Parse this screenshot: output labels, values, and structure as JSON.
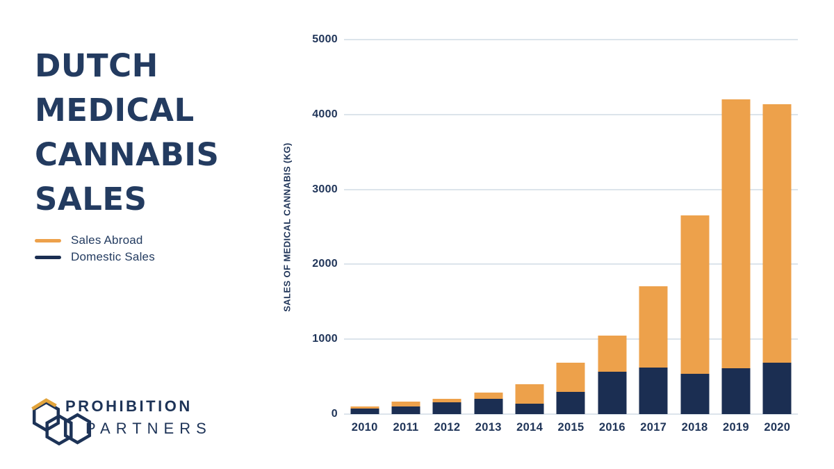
{
  "page": {
    "background": "#ffffff"
  },
  "title": "DUTCH\nMEDICAL\nCANNABIS\nSALES",
  "legend": {
    "items": [
      {
        "label": "Sales Abroad",
        "color": "#EDA14B"
      },
      {
        "label": "Domestic Sales",
        "color": "#1B2E52"
      }
    ]
  },
  "logo": {
    "line1": "PROHIBITION",
    "line2": "PARTNERS",
    "icon": "honeycomb-hexagons-icon",
    "navy": "#1D3357",
    "gold": "#E2A43C"
  },
  "colors": {
    "navy_bar": "#1B2E52",
    "orange_bar": "#EDA14B",
    "text_navy": "#233B60",
    "axis_text": "#1F3458",
    "gridline": "#DCE4EB"
  },
  "chart_data": {
    "type": "bar",
    "stacked": true,
    "title": "Dutch Medical Cannabis Sales",
    "ylabel": "SALES OF MEDICAL CANNABIS (KG)",
    "xlabel": "",
    "categories": [
      "2010",
      "2011",
      "2012",
      "2013",
      "2014",
      "2015",
      "2016",
      "2017",
      "2018",
      "2019",
      "2020"
    ],
    "series": [
      {
        "name": "Domestic Sales",
        "color": "#1B2E52",
        "values": [
          70,
          105,
          155,
          205,
          140,
          300,
          570,
          620,
          540,
          610,
          690
        ]
      },
      {
        "name": "Sales Abroad",
        "color": "#EDA14B",
        "values": [
          35,
          60,
          45,
          85,
          260,
          390,
          480,
          1090,
          2110,
          3590,
          3450
        ]
      }
    ],
    "totals": [
      105,
      165,
      200,
      290,
      400,
      690,
      1050,
      1710,
      2650,
      4200,
      4140
    ],
    "ylim": [
      0,
      5000
    ],
    "yticks": [
      0,
      1000,
      2000,
      3000,
      4000,
      5000
    ],
    "grid": true,
    "legend_position": "left"
  }
}
